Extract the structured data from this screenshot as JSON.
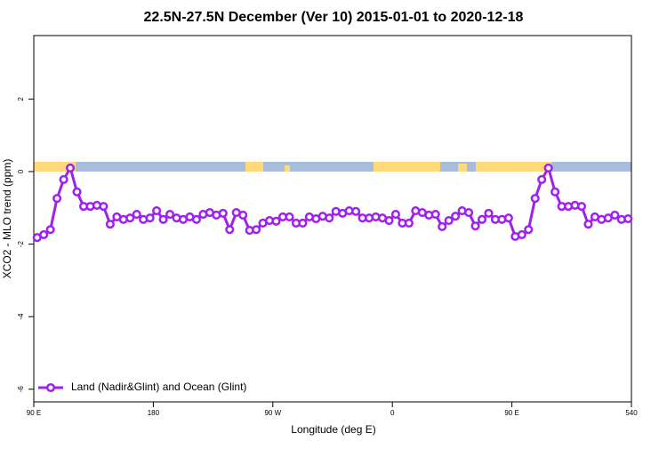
{
  "chart_data": {
    "type": "line",
    "title": "22.5N-27.5N December (Ver 10)   2015-01-01 to 2020-12-18",
    "x_label": "Longitude (deg E)",
    "y_label": "XCO2 - MLO trend (ppm)",
    "x": [
      92.5,
      97.5,
      102.5,
      107.5,
      112.5,
      117.5,
      122.5,
      127.5,
      132.5,
      137.5,
      142.5,
      147.5,
      152.5,
      157.5,
      162.5,
      167.5,
      172.5,
      177.5,
      182.5,
      187.5,
      192.5,
      197.5,
      202.5,
      207.5,
      212.5,
      217.5,
      222.5,
      227.5,
      232.5,
      237.5,
      242.5,
      247.5,
      252.5,
      257.5,
      262.5,
      267.5,
      272.5,
      277.5,
      282.5,
      287.5,
      292.5,
      297.5,
      302.5,
      307.5,
      312.5,
      317.5,
      322.5,
      327.5,
      332.5,
      337.5,
      342.5,
      347.5,
      352.5,
      357.5,
      362.5,
      367.5,
      372.5,
      377.5,
      382.5,
      387.5,
      392.5,
      397.5,
      402.5,
      407.5,
      412.5,
      417.5,
      422.5,
      427.5,
      432.5,
      437.5,
      442.5,
      447.5,
      452.5,
      457.5,
      462.5,
      467.5,
      472.5,
      477.5,
      482.5,
      487.5,
      492.5,
      497.5,
      502.5,
      507.5,
      512.5,
      517.5,
      522.5,
      527.5,
      532.5,
      537.5
    ],
    "series": [
      {
        "name": "Land (Nadir&Glint) and Ocean (Glint)",
        "color": "#a020f0",
        "values": [
          -1.82,
          -1.74,
          -1.6,
          -0.74,
          -0.22,
          0.1,
          -0.56,
          -0.96,
          -0.96,
          -0.93,
          -0.96,
          -1.45,
          -1.25,
          -1.32,
          -1.28,
          -1.18,
          -1.32,
          -1.28,
          -1.08,
          -1.32,
          -1.18,
          -1.28,
          -1.32,
          -1.25,
          -1.32,
          -1.18,
          -1.13,
          -1.2,
          -1.15,
          -1.6,
          -1.13,
          -1.2,
          -1.62,
          -1.6,
          -1.42,
          -1.35,
          -1.37,
          -1.25,
          -1.25,
          -1.42,
          -1.42,
          -1.25,
          -1.3,
          -1.23,
          -1.28,
          -1.1,
          -1.15,
          -1.08,
          -1.1,
          -1.28,
          -1.28,
          -1.25,
          -1.28,
          -1.35,
          -1.18,
          -1.42,
          -1.42,
          -1.08,
          -1.13,
          -1.2,
          -1.18,
          -1.52,
          -1.35,
          -1.23,
          -1.08,
          -1.13,
          -1.5,
          -1.32,
          -1.15,
          -1.32,
          -1.32,
          -1.28,
          -1.79,
          -1.74,
          -1.6,
          -0.74,
          -0.22,
          0.1,
          -0.56,
          -0.96,
          -0.96,
          -0.93,
          -0.96,
          -1.45,
          -1.25,
          -1.32,
          -1.28,
          -1.2,
          -1.32,
          -1.3
        ]
      }
    ],
    "xlim": [
      90,
      540
    ],
    "xticks": [
      {
        "value": 90,
        "label": "90 E"
      },
      180,
      {
        "value": 270,
        "label": "90 W"
      },
      {
        "value": 360,
        "label": "0"
      },
      {
        "value": 450,
        "label": "90 E"
      },
      540
    ],
    "ylim": [
      -6.35,
      3.75
    ],
    "yticks": [
      -6,
      -4,
      -2,
      0,
      2
    ],
    "legend": "lower left"
  }
}
